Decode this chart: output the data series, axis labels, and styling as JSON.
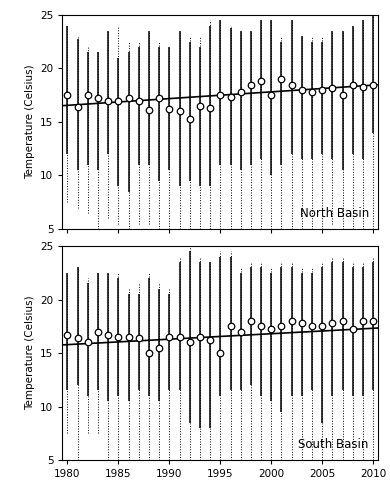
{
  "years": [
    1980,
    1981,
    1982,
    1983,
    1984,
    1985,
    1986,
    1987,
    1988,
    1989,
    1990,
    1991,
    1992,
    1993,
    1994,
    1995,
    1996,
    1997,
    1998,
    1999,
    2000,
    2001,
    2002,
    2003,
    2004,
    2005,
    2006,
    2007,
    2008,
    2009,
    2010
  ],
  "north_mean": [
    17.5,
    16.4,
    17.5,
    17.2,
    17.0,
    17.0,
    17.2,
    17.0,
    16.1,
    17.2,
    16.2,
    16.0,
    15.3,
    16.5,
    16.3,
    17.5,
    17.3,
    17.8,
    18.5,
    18.8,
    17.5,
    19.0,
    18.5,
    18.0,
    17.8,
    18.0,
    18.2,
    17.5,
    18.5,
    18.3,
    18.5
  ],
  "north_solid_top": [
    24.0,
    22.8,
    21.5,
    21.5,
    23.5,
    21.0,
    21.5,
    22.0,
    23.5,
    22.0,
    22.0,
    23.5,
    22.5,
    22.0,
    24.0,
    24.5,
    23.8,
    23.5,
    23.5,
    24.5,
    24.5,
    22.5,
    24.5,
    23.0,
    22.5,
    22.5,
    23.5,
    23.5,
    24.0,
    24.5,
    25.0
  ],
  "north_solid_bot": [
    12.0,
    10.5,
    11.0,
    10.5,
    12.0,
    9.0,
    8.5,
    11.0,
    11.0,
    9.5,
    10.5,
    9.0,
    9.5,
    9.0,
    9.0,
    11.0,
    11.0,
    10.5,
    11.0,
    11.5,
    10.0,
    11.0,
    12.0,
    11.5,
    11.5,
    12.0,
    11.5,
    10.5,
    12.0,
    11.5,
    14.0
  ],
  "north_dot_top": [
    24.0,
    23.0,
    22.0,
    21.5,
    23.5,
    24.0,
    22.5,
    22.5,
    23.5,
    22.5,
    22.0,
    23.5,
    23.0,
    23.0,
    24.5,
    24.5,
    24.0,
    23.5,
    23.5,
    24.5,
    24.5,
    23.0,
    24.5,
    23.0,
    23.0,
    23.0,
    23.5,
    23.5,
    24.0,
    24.5,
    25.0
  ],
  "north_dot_bot": [
    7.5,
    7.0,
    6.5,
    5.0,
    6.0,
    5.5,
    5.0,
    5.5,
    5.5,
    5.0,
    5.0,
    5.0,
    5.0,
    5.0,
    4.5,
    5.0,
    5.0,
    5.0,
    5.0,
    5.0,
    5.0,
    5.0,
    5.0,
    5.0,
    5.0,
    5.0,
    5.5,
    5.0,
    5.0,
    5.0,
    5.0
  ],
  "south_mean": [
    16.7,
    16.4,
    16.0,
    17.0,
    16.7,
    16.5,
    16.5,
    16.4,
    15.0,
    15.5,
    16.5,
    16.5,
    16.0,
    16.5,
    16.2,
    15.0,
    17.5,
    17.0,
    18.0,
    17.5,
    17.2,
    17.5,
    18.0,
    17.8,
    17.5,
    17.5,
    17.8,
    18.0,
    17.2,
    18.0,
    18.0
  ],
  "south_solid_top": [
    22.5,
    23.0,
    21.5,
    22.5,
    22.5,
    22.0,
    20.5,
    20.5,
    22.0,
    21.0,
    20.5,
    23.5,
    24.5,
    23.5,
    23.5,
    24.0,
    24.0,
    22.5,
    23.0,
    23.0,
    22.5,
    23.0,
    23.0,
    22.5,
    22.5,
    23.0,
    23.5,
    23.5,
    23.0,
    23.0,
    23.5
  ],
  "south_solid_bot": [
    11.5,
    12.0,
    11.0,
    11.5,
    10.5,
    11.0,
    10.5,
    11.5,
    11.0,
    10.5,
    11.5,
    11.5,
    8.5,
    8.0,
    8.0,
    11.0,
    11.5,
    11.5,
    12.0,
    11.0,
    10.5,
    9.5,
    11.0,
    11.0,
    11.5,
    8.5,
    11.0,
    11.5,
    11.0,
    11.0,
    11.5
  ],
  "south_dot_top": [
    22.5,
    23.0,
    22.0,
    22.5,
    22.5,
    22.5,
    21.0,
    21.5,
    22.5,
    21.5,
    21.0,
    24.0,
    25.0,
    24.0,
    23.5,
    24.5,
    24.5,
    23.0,
    23.5,
    23.5,
    23.0,
    23.5,
    23.5,
    23.0,
    23.0,
    23.5,
    24.0,
    24.0,
    23.5,
    23.5,
    24.0
  ],
  "south_dot_bot": [
    7.5,
    5.0,
    7.5,
    7.5,
    5.0,
    5.0,
    5.0,
    5.0,
    5.0,
    5.0,
    5.0,
    5.0,
    5.0,
    5.0,
    5.0,
    5.0,
    5.0,
    5.0,
    5.0,
    5.0,
    5.0,
    5.0,
    5.0,
    5.0,
    5.0,
    5.0,
    5.0,
    5.0,
    5.0,
    5.0,
    5.0
  ],
  "north_rate": 0.063,
  "south_rate": 0.051,
  "north_intercept": 17.5,
  "south_intercept": 16.55,
  "xlim": [
    1979.5,
    2010.5
  ],
  "ylim": [
    5,
    25
  ],
  "yticks": [
    5,
    10,
    15,
    20,
    25
  ],
  "xticks": [
    1980,
    1985,
    1990,
    1995,
    2000,
    2005,
    2010
  ],
  "ylabel": "Temperature (Celsius)",
  "north_label": "North Basin",
  "south_label": "South Basin",
  "ref_year": 1995
}
